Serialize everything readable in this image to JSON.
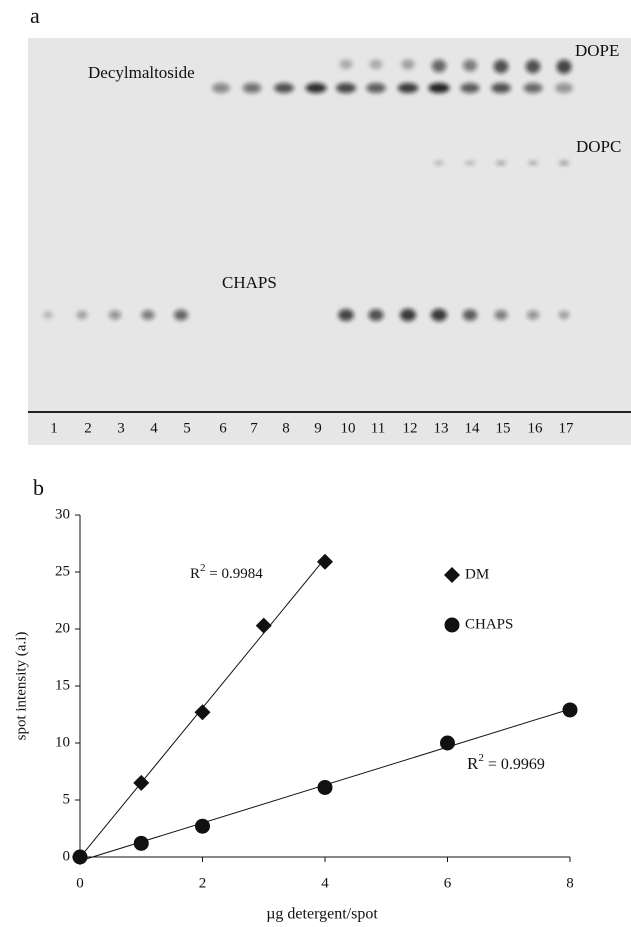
{
  "panel_a": {
    "label": "a",
    "band_labels": [
      "Decylmaltoside",
      "DOPE",
      "DOPC",
      "CHAPS"
    ],
    "lanes": [
      1,
      2,
      3,
      4,
      5,
      6,
      7,
      8,
      9,
      10,
      11,
      12,
      13,
      14,
      15,
      16,
      17
    ]
  },
  "chart_data": {
    "type": "scatter",
    "panel_label": "b",
    "x_label": "µg detergent/spot",
    "y_label": "spot intensity (a.i)",
    "xlim": [
      0,
      8
    ],
    "ylim": [
      0,
      30
    ],
    "xticks": [
      0,
      2,
      4,
      6,
      8
    ],
    "yticks": [
      0,
      5,
      10,
      15,
      20,
      25,
      30
    ],
    "series": [
      {
        "name": "DM",
        "color": "#111111",
        "marker": "diamond",
        "x": [
          0,
          1,
          2,
          3,
          4
        ],
        "values": [
          0,
          6.5,
          12.7,
          20.3,
          25.9
        ]
      },
      {
        "name": "CHAPS",
        "color": "#111111",
        "marker": "circle",
        "x": [
          0,
          1,
          2,
          4,
          6,
          8
        ],
        "values": [
          0,
          1.2,
          2.7,
          6.1,
          10,
          12.9
        ]
      }
    ],
    "annotations": [
      {
        "base": "R",
        "sup": "2",
        "text": " = 0.9984"
      },
      {
        "base": "R",
        "sup": "2",
        "text": " = 0.9969"
      }
    ]
  }
}
